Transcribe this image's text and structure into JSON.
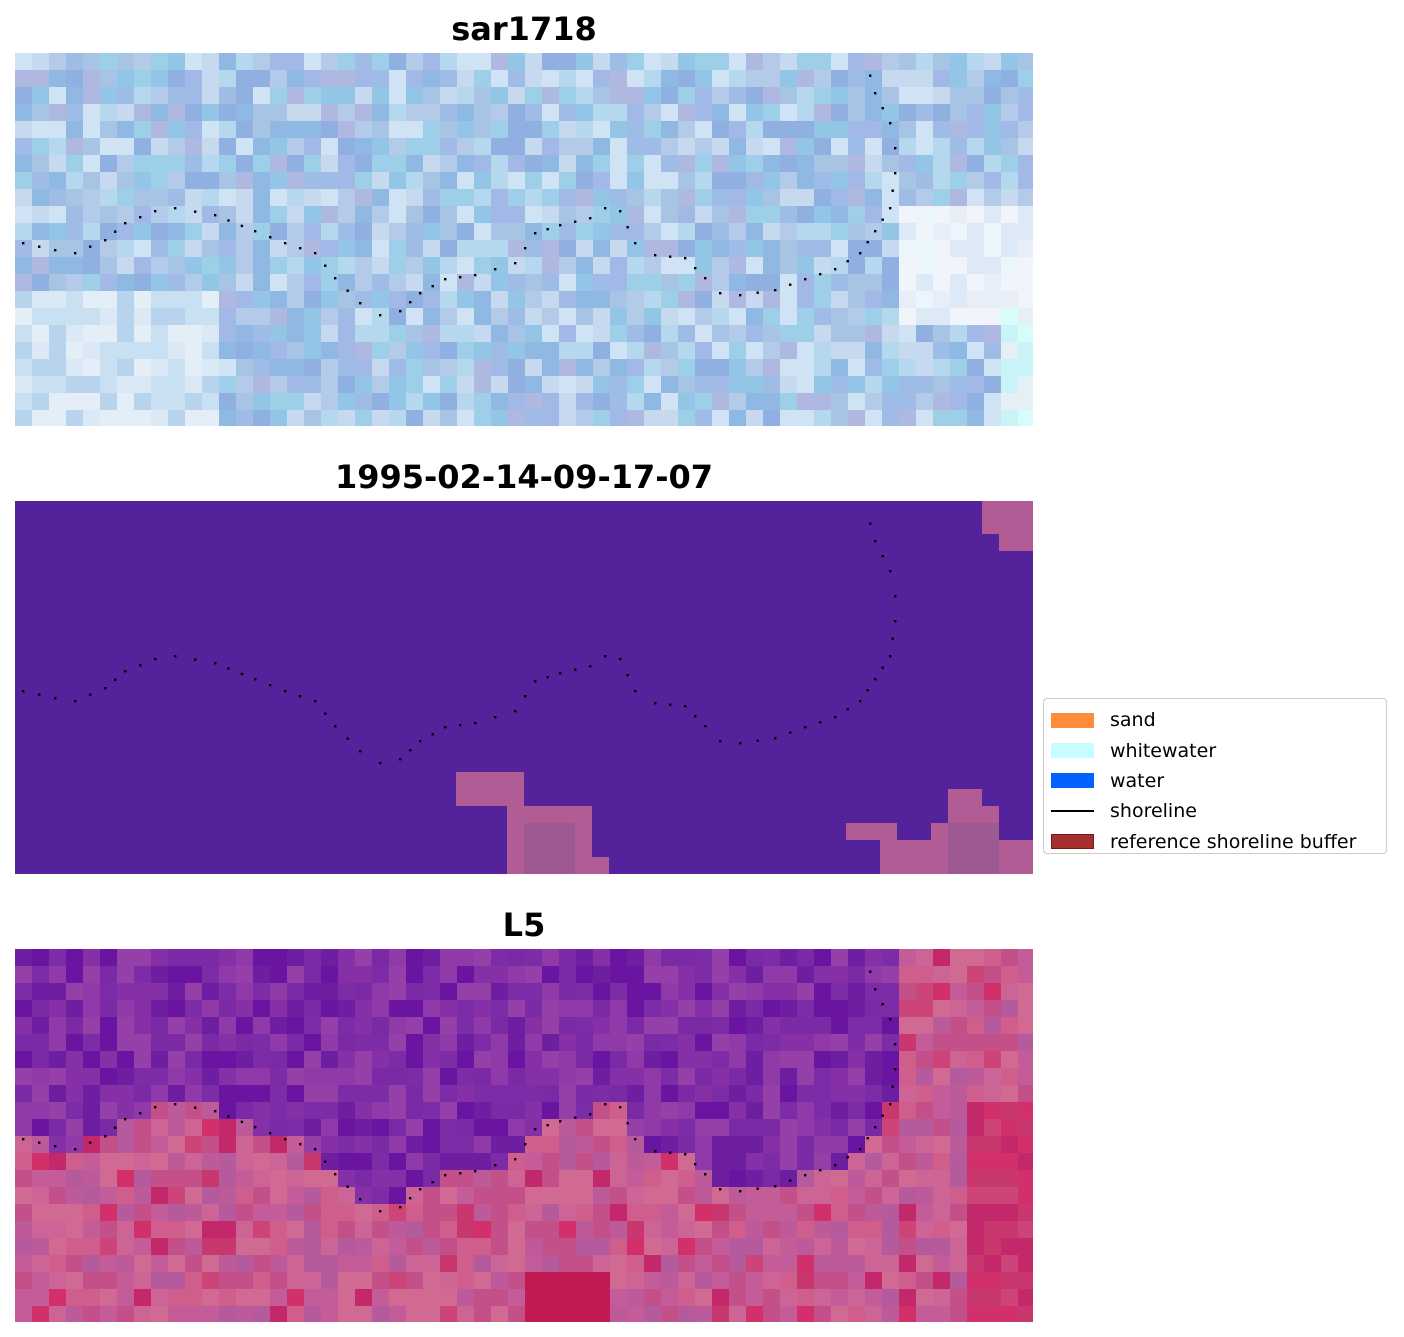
{
  "panels": [
    {
      "id": "rgb",
      "title": "sar1718"
    },
    {
      "id": "classified",
      "title": "1995-02-14-09-17-07"
    },
    {
      "id": "index",
      "title": "L5"
    }
  ],
  "legend": {
    "items": [
      {
        "label": "sand",
        "kind": "patch",
        "color": "#ff8c3a"
      },
      {
        "label": "whitewater",
        "kind": "patch",
        "color": "#c8fdfd"
      },
      {
        "label": "water",
        "kind": "patch",
        "color": "#0062ff"
      },
      {
        "label": "shoreline",
        "kind": "line",
        "color": "#000000"
      },
      {
        "label": "reference shoreline buffer",
        "kind": "patch",
        "color": "#a3302e",
        "edge": "#7a1a18"
      }
    ]
  },
  "colors": {
    "classified_background": "#54229a",
    "buffer_overlay": "#b25c96",
    "shoreline_dots": "#000000"
  }
}
